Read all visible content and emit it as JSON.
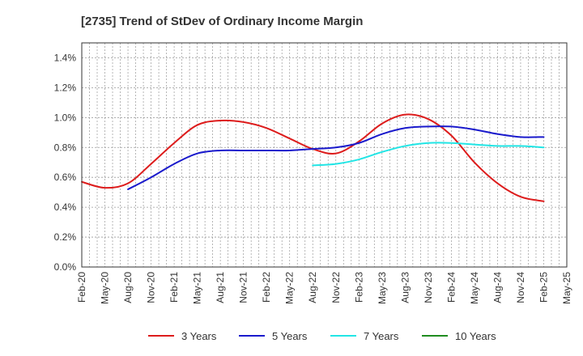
{
  "chart_data": {
    "type": "line",
    "title": "[2735]  Trend of StDev of Ordinary Income Margin",
    "xlabel": "",
    "ylabel": "",
    "ylim": [
      0,
      1.5
    ],
    "y_ticks": [
      0,
      0.2,
      0.4,
      0.6,
      0.8,
      1.0,
      1.2,
      1.4
    ],
    "y_tick_labels": [
      "0.0%",
      "0.2%",
      "0.4%",
      "0.6%",
      "0.8%",
      "1.0%",
      "1.2%",
      "1.4%"
    ],
    "categories": [
      "Feb-20",
      "May-20",
      "Aug-20",
      "Nov-20",
      "Feb-21",
      "May-21",
      "Aug-21",
      "Nov-21",
      "Feb-22",
      "May-22",
      "Aug-22",
      "Nov-22",
      "Feb-23",
      "May-23",
      "Aug-23",
      "Nov-23",
      "Feb-24",
      "May-24",
      "Aug-24",
      "Nov-24",
      "Feb-25",
      "May-25"
    ],
    "grid": true,
    "legend_position": "bottom",
    "series": [
      {
        "name": "3 Years",
        "color": "#dd1c1c",
        "values": [
          0.57,
          0.53,
          0.56,
          0.69,
          0.83,
          0.95,
          0.98,
          0.97,
          0.93,
          0.86,
          0.79,
          0.76,
          0.84,
          0.96,
          1.02,
          0.99,
          0.88,
          0.7,
          0.56,
          0.47,
          0.44,
          null
        ]
      },
      {
        "name": "5 Years",
        "color": "#1a1acc",
        "values": [
          null,
          null,
          0.52,
          0.6,
          0.69,
          0.76,
          0.78,
          0.78,
          0.78,
          0.78,
          0.79,
          0.8,
          0.83,
          0.89,
          0.93,
          0.94,
          0.94,
          0.92,
          0.89,
          0.87,
          0.87,
          null
        ]
      },
      {
        "name": "7 Years",
        "color": "#22e5e5",
        "values": [
          null,
          null,
          null,
          null,
          null,
          null,
          null,
          null,
          null,
          null,
          0.68,
          0.69,
          0.72,
          0.77,
          0.81,
          0.83,
          0.83,
          0.82,
          0.81,
          0.81,
          0.8,
          null
        ]
      },
      {
        "name": "10 Years",
        "color": "#1f8c1f",
        "values": [
          null,
          null,
          null,
          null,
          null,
          null,
          null,
          null,
          null,
          null,
          null,
          null,
          null,
          null,
          null,
          null,
          null,
          null,
          null,
          null,
          null,
          null
        ]
      }
    ]
  }
}
